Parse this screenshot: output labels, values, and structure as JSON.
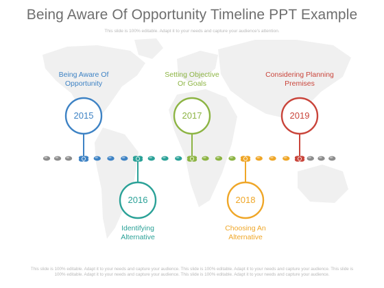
{
  "slide": {
    "title": "Being Aware Of Opportunity Timeline  PPT Example",
    "subtitle": "This slide is 100% editable. Adapt it to your needs and capture your audience's attention.",
    "footer_line1": "This slide is 100% editable. Adapt it to your needs and capture your audience. This slide is 100% editable. Adapt it to your needs and capture your audience. This slide is",
    "footer_line2": "100% editable. Adapt it to your needs and capture your audience. This slide is 100% editable. Adapt it to your needs and capture your audience."
  },
  "colors": {
    "track_gray": "#8c8c8c",
    "map": "#f0f0f0"
  },
  "milestones": [
    {
      "year": "2015",
      "label_line1": "Being Aware Of",
      "label_line2": "Opportunity",
      "position": "above",
      "color": "#3d82c4"
    },
    {
      "year": "2016",
      "label_line1": "Identifying",
      "label_line2": "Alternative",
      "position": "below",
      "color": "#2aa197"
    },
    {
      "year": "2017",
      "label_line1": "Setting Objective",
      "label_line2": "Or Goals",
      "position": "above",
      "color": "#8cb443"
    },
    {
      "year": "2018",
      "label_line1": "Choosing An",
      "label_line2": "Alternative",
      "position": "below",
      "color": "#efa627"
    },
    {
      "year": "2019",
      "label_line1": "Considering Planning",
      "label_line2": "Premises",
      "position": "above",
      "color": "#c9443a"
    }
  ]
}
